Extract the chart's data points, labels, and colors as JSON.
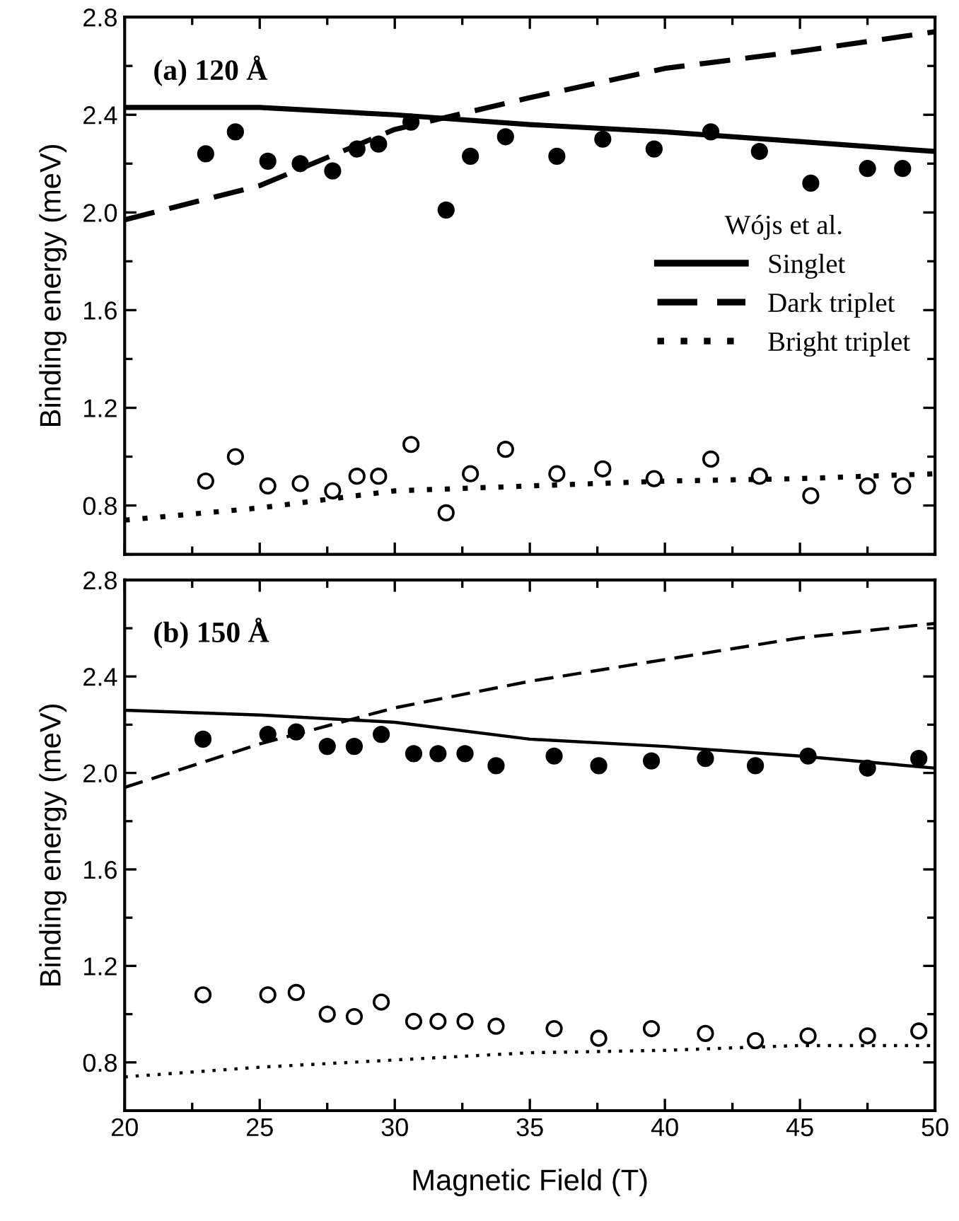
{
  "chart_data": [
    {
      "type": "line",
      "annotations": [
        "(a) 120 Å"
      ],
      "ylabel": "Binding energy (meV)",
      "legend_title": "Wójs et al.",
      "legend": "right",
      "xlim": [
        20,
        50
      ],
      "xticks": [
        20,
        25,
        30,
        35,
        40,
        45,
        50
      ],
      "ylim": [
        0.6,
        2.8
      ],
      "yticks": [
        {
          "value": 0.8,
          "label": "0.8"
        },
        {
          "value": 1.2,
          "label": "1.2"
        },
        {
          "value": 1.6,
          "label": "1.6"
        },
        {
          "value": 2.0,
          "label": "2.0"
        },
        {
          "value": 2.4,
          "label": "2.4"
        },
        {
          "value": 2.8,
          "label": "2.8"
        }
      ],
      "tick_labels": "y",
      "grid": false,
      "series": [
        {
          "name": "Singlet",
          "line_style": "solid",
          "color": "#000000",
          "x": [
            20,
            25,
            30,
            35,
            40,
            45,
            50
          ],
          "values": [
            2.43,
            2.43,
            2.4,
            2.36,
            2.33,
            2.29,
            2.25
          ]
        },
        {
          "name": "Dark triplet",
          "line_style": "dashed",
          "color": "#000000",
          "x": [
            20,
            25,
            30,
            35,
            40,
            45,
            50
          ],
          "values": [
            1.97,
            2.11,
            2.34,
            2.47,
            2.59,
            2.66,
            2.74
          ]
        },
        {
          "name": "Bright triplet",
          "line_style": "dotted",
          "color": "#000000",
          "x": [
            20,
            25,
            30,
            35,
            40,
            45,
            50
          ],
          "values": [
            0.74,
            0.79,
            0.86,
            0.88,
            0.9,
            0.91,
            0.93
          ]
        },
        {
          "type": "scatter",
          "marker": "circle",
          "color": "#000000",
          "x": [
            23.0,
            24.1,
            25.3,
            26.5,
            27.7,
            28.6,
            29.4,
            30.6,
            31.9,
            32.8,
            34.1,
            36.0,
            37.7,
            39.6,
            41.7,
            43.5,
            45.4,
            47.5,
            48.8
          ],
          "values": [
            2.24,
            2.33,
            2.21,
            2.2,
            2.17,
            2.26,
            2.28,
            2.37,
            2.01,
            2.23,
            2.31,
            2.23,
            2.3,
            2.26,
            2.33,
            2.25,
            2.12,
            2.18,
            2.18
          ]
        },
        {
          "type": "scatter",
          "marker": "circle",
          "color": "#ffffff",
          "x": [
            23.0,
            24.1,
            25.3,
            26.5,
            27.7,
            28.6,
            29.4,
            30.6,
            31.9,
            32.8,
            34.1,
            36.0,
            37.7,
            39.6,
            41.7,
            43.5,
            45.4,
            47.5,
            48.8
          ],
          "values": [
            0.9,
            1.0,
            0.88,
            0.89,
            0.86,
            0.92,
            0.92,
            1.05,
            0.77,
            0.93,
            1.03,
            0.93,
            0.95,
            0.91,
            0.99,
            0.92,
            0.84,
            0.88,
            0.88
          ]
        }
      ]
    },
    {
      "type": "line",
      "annotations": [
        "(b) 150 Å"
      ],
      "xlabel": "Magnetic Field (T)",
      "ylabel": "Binding energy (meV)",
      "xlim": [
        20,
        50
      ],
      "xticks": [
        20,
        25,
        30,
        35,
        40,
        45,
        50
      ],
      "ylim": [
        0.6,
        2.8
      ],
      "yticks": [
        {
          "value": 0.8,
          "label": "0.8"
        },
        {
          "value": 1.2,
          "label": "1.2"
        },
        {
          "value": 1.6,
          "label": "1.6"
        },
        {
          "value": 2.0,
          "label": "2.0"
        },
        {
          "value": 2.4,
          "label": "2.4"
        },
        {
          "value": 2.8,
          "label": "2.8"
        }
      ],
      "grid": false,
      "series": [
        {
          "line_style": "solid",
          "color": "#000000",
          "x": [
            20,
            25,
            30,
            35,
            40,
            45,
            50
          ],
          "values": [
            2.26,
            2.24,
            2.21,
            2.14,
            2.11,
            2.07,
            2.02
          ]
        },
        {
          "line_style": "dashed",
          "color": "#000000",
          "x": [
            20,
            25,
            30,
            35,
            40,
            45,
            50
          ],
          "values": [
            1.94,
            2.12,
            2.27,
            2.38,
            2.47,
            2.56,
            2.62
          ]
        },
        {
          "line_style": "dotted",
          "color": "#000000",
          "x": [
            20,
            25,
            30,
            35,
            40,
            45,
            50
          ],
          "values": [
            0.74,
            0.78,
            0.81,
            0.84,
            0.85,
            0.87,
            0.87
          ]
        },
        {
          "type": "scatter",
          "marker": "circle",
          "color": "#000000",
          "x": [
            22.9,
            25.3,
            26.35,
            27.5,
            28.5,
            29.5,
            30.7,
            31.6,
            32.6,
            33.75,
            35.9,
            37.55,
            39.5,
            41.5,
            43.35,
            45.3,
            47.5,
            49.4
          ],
          "values": [
            2.14,
            2.16,
            2.17,
            2.11,
            2.11,
            2.16,
            2.08,
            2.08,
            2.08,
            2.03,
            2.07,
            2.03,
            2.05,
            2.06,
            2.03,
            2.07,
            2.02,
            2.06
          ]
        },
        {
          "type": "scatter",
          "marker": "circle",
          "color": "#ffffff",
          "x": [
            22.9,
            25.3,
            26.35,
            27.5,
            28.5,
            29.5,
            30.7,
            31.6,
            32.6,
            33.75,
            35.9,
            37.55,
            39.5,
            41.5,
            43.35,
            45.3,
            47.5,
            49.4
          ],
          "values": [
            1.08,
            1.08,
            1.09,
            1.0,
            0.99,
            1.05,
            0.97,
            0.97,
            0.97,
            0.95,
            0.94,
            0.9,
            0.94,
            0.92,
            0.89,
            0.91,
            0.91,
            0.93
          ]
        }
      ]
    }
  ]
}
